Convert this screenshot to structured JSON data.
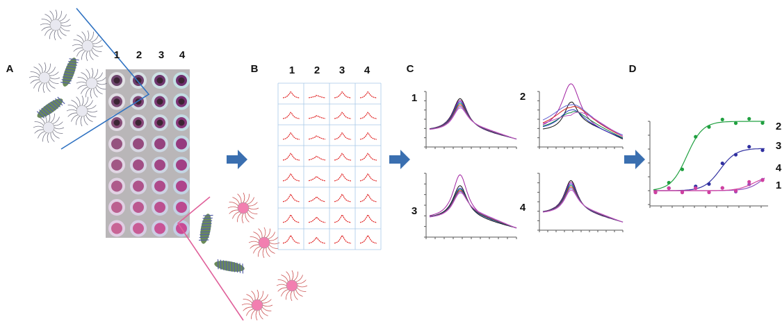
{
  "panels": [
    {
      "label": "A",
      "columns": [
        "1",
        "2",
        "3",
        "4"
      ]
    },
    {
      "label": "B",
      "columns": [
        "1",
        "2",
        "3",
        "4"
      ]
    },
    {
      "label": "C",
      "plots": [
        "1",
        "2",
        "3",
        "4"
      ]
    },
    {
      "label": "D",
      "curves": [
        "2",
        "3",
        "4",
        "1"
      ]
    }
  ]
}
